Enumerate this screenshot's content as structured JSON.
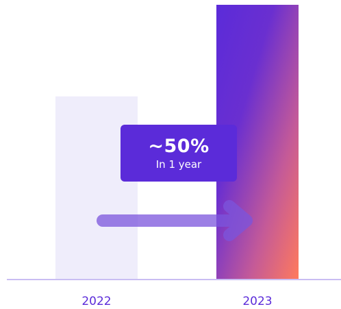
{
  "chart_data": {
    "type": "bar",
    "categories": [
      "2022",
      "2023"
    ],
    "values": [
      100,
      150
    ],
    "ylim": [
      0,
      150
    ],
    "annotation": {
      "value": "~50%",
      "label": "In 1 year"
    },
    "colors": {
      "bar_2022": "#efedfb",
      "bar_2023_top": "#5b2bd9",
      "bar_2023_bottom": "#ff7a5c",
      "accent": "#5b2bd9",
      "baseline": "#c9bdf3",
      "arrow": "#7b55dd"
    }
  }
}
